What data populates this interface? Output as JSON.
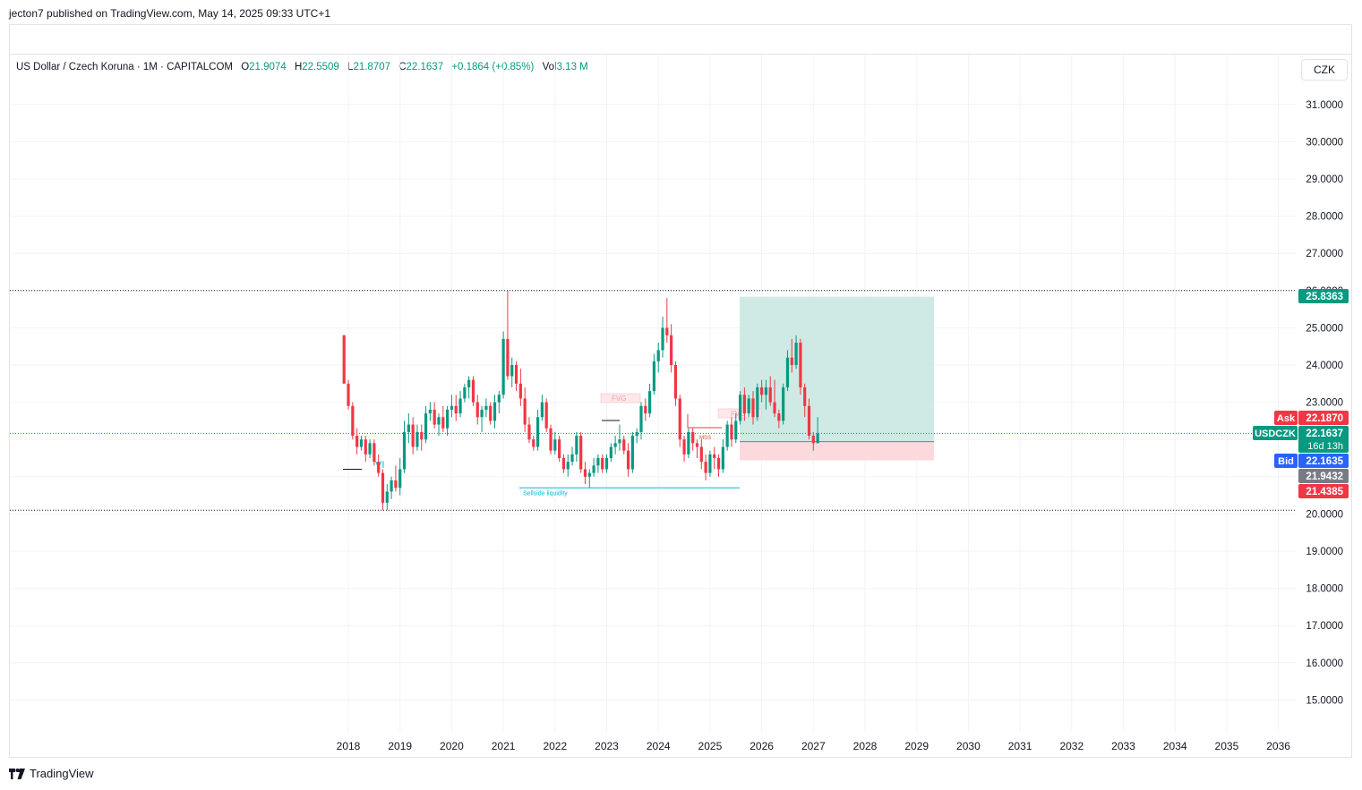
{
  "publish_line": "jecton7 published on TradingView.com, May 14, 2025 09:33 UTC+1",
  "header": {
    "symbol_text": "US Dollar / Czech Koruna · 1M · CAPITALCOM",
    "o_label": "O",
    "o_value": "21.9074",
    "h_label": "H",
    "h_value": "22.5509",
    "l_label": "L",
    "l_value": "21.8707",
    "c_label": "C",
    "c_value": "22.1637",
    "change": "+0.1864 (+0.85%)",
    "vol_label": "Vol",
    "vol_value": "3.13 M"
  },
  "currency_button": "CZK",
  "footer_brand": "TradingView",
  "colors": {
    "up": "#089981",
    "down": "#f23645",
    "grid": "#f0f3fa",
    "teal": "#00bcd4",
    "target_zone": "#cfeae4",
    "stop_zone": "#fbd9dd"
  },
  "chart_data": {
    "type": "candlestick",
    "timeframe": "1M",
    "ylim": [
      14.0,
      32.0
    ],
    "y_ticks": [
      "31.0000",
      "30.0000",
      "29.0000",
      "28.0000",
      "27.0000",
      "26.0000",
      "25.0000",
      "24.0000",
      "23.0000",
      "22.0000",
      "21.0000",
      "20.0000",
      "19.0000",
      "18.0000",
      "17.0000",
      "16.0000",
      "15.0000"
    ],
    "x_ticks": [
      "2018",
      "2019",
      "2020",
      "2021",
      "2022",
      "2023",
      "2024",
      "2025",
      "2026",
      "2027",
      "2028",
      "2029",
      "2030",
      "2031",
      "2032",
      "2033",
      "2034",
      "2035",
      "2036"
    ],
    "ohlc_monthly": [
      [
        24.8,
        24.8,
        23.5,
        23.5
      ],
      [
        23.5,
        23.6,
        22.8,
        22.9
      ],
      [
        22.9,
        23.0,
        22.0,
        22.1
      ],
      [
        22.1,
        22.3,
        21.6,
        21.8
      ],
      [
        21.8,
        22.1,
        21.7,
        22.0
      ],
      [
        22.0,
        22.1,
        21.4,
        21.6
      ],
      [
        21.6,
        22.0,
        21.5,
        21.9
      ],
      [
        21.9,
        22.0,
        21.3,
        21.4
      ],
      [
        21.4,
        21.6,
        21.0,
        21.1
      ],
      [
        21.1,
        21.2,
        20.1,
        20.3
      ],
      [
        20.3,
        20.8,
        20.1,
        20.6
      ],
      [
        20.6,
        21.0,
        20.4,
        20.9
      ],
      [
        20.9,
        21.3,
        20.6,
        20.7
      ],
      [
        20.7,
        21.5,
        20.5,
        21.2
      ],
      [
        21.2,
        22.5,
        21.1,
        22.2
      ],
      [
        22.2,
        22.7,
        21.9,
        22.4
      ],
      [
        22.4,
        22.6,
        21.6,
        21.8
      ],
      [
        21.8,
        22.4,
        21.7,
        22.2
      ],
      [
        22.2,
        22.4,
        21.7,
        22.0
      ],
      [
        22.0,
        22.9,
        21.9,
        22.7
      ],
      [
        22.7,
        23.0,
        22.5,
        22.8
      ],
      [
        22.8,
        23.0,
        22.3,
        22.4
      ],
      [
        22.4,
        22.7,
        22.1,
        22.6
      ],
      [
        22.6,
        22.9,
        22.2,
        22.3
      ],
      [
        22.3,
        22.9,
        22.1,
        22.8
      ],
      [
        22.8,
        23.2,
        22.6,
        22.9
      ],
      [
        22.9,
        23.2,
        22.5,
        22.7
      ],
      [
        22.7,
        23.3,
        22.6,
        23.1
      ],
      [
        23.1,
        23.5,
        23.0,
        23.4
      ],
      [
        23.4,
        23.7,
        23.1,
        23.6
      ],
      [
        23.6,
        23.7,
        22.9,
        23.0
      ],
      [
        23.0,
        23.2,
        22.4,
        22.6
      ],
      [
        22.6,
        22.9,
        22.2,
        22.8
      ],
      [
        22.8,
        23.1,
        22.6,
        22.9
      ],
      [
        22.9,
        23.0,
        22.4,
        22.5
      ],
      [
        22.5,
        23.2,
        22.3,
        23.0
      ],
      [
        23.0,
        23.3,
        22.7,
        23.2
      ],
      [
        23.2,
        24.9,
        23.1,
        24.7
      ],
      [
        24.7,
        26.0,
        23.6,
        23.7
      ],
      [
        23.7,
        24.2,
        23.4,
        24.0
      ],
      [
        24.0,
        24.1,
        23.3,
        23.5
      ],
      [
        23.5,
        23.9,
        22.9,
        23.1
      ],
      [
        23.1,
        23.4,
        22.2,
        22.4
      ],
      [
        22.4,
        22.6,
        21.9,
        22.0
      ],
      [
        22.0,
        22.1,
        21.7,
        21.8
      ],
      [
        21.8,
        22.8,
        21.7,
        22.6
      ],
      [
        22.6,
        23.2,
        22.5,
        23.0
      ],
      [
        23.0,
        23.1,
        22.2,
        22.3
      ],
      [
        22.3,
        22.4,
        21.6,
        21.7
      ],
      [
        21.7,
        22.2,
        21.6,
        22.0
      ],
      [
        22.0,
        22.1,
        21.4,
        21.5
      ],
      [
        21.5,
        21.6,
        21.1,
        21.2
      ],
      [
        21.2,
        21.6,
        21.0,
        21.4
      ],
      [
        21.4,
        21.8,
        21.3,
        21.6
      ],
      [
        21.6,
        22.2,
        21.4,
        22.1
      ],
      [
        22.1,
        22.2,
        21.1,
        21.2
      ],
      [
        21.2,
        21.4,
        20.8,
        21.0
      ],
      [
        21.0,
        21.2,
        20.7,
        21.1
      ],
      [
        21.1,
        21.5,
        21.0,
        21.3
      ],
      [
        21.3,
        21.6,
        21.1,
        21.5
      ],
      [
        21.5,
        21.6,
        21.1,
        21.2
      ],
      [
        21.2,
        21.6,
        21.1,
        21.5
      ],
      [
        21.5,
        21.9,
        21.4,
        21.8
      ],
      [
        21.8,
        22.1,
        21.6,
        21.9
      ],
      [
        21.9,
        22.4,
        21.7,
        22.0
      ],
      [
        22.0,
        22.1,
        21.6,
        21.7
      ],
      [
        21.7,
        21.9,
        21.0,
        21.2
      ],
      [
        21.2,
        22.2,
        21.1,
        22.1
      ],
      [
        22.1,
        22.3,
        21.9,
        22.2
      ],
      [
        22.2,
        23.0,
        22.0,
        22.9
      ],
      [
        22.9,
        23.1,
        22.5,
        22.7
      ],
      [
        22.7,
        23.5,
        22.6,
        23.3
      ],
      [
        23.3,
        24.3,
        23.2,
        24.1
      ],
      [
        24.1,
        24.6,
        23.8,
        24.4
      ],
      [
        24.4,
        25.3,
        24.2,
        25.0
      ],
      [
        25.0,
        25.8,
        24.6,
        24.8
      ],
      [
        24.8,
        25.1,
        23.8,
        24.0
      ],
      [
        24.0,
        24.1,
        22.9,
        23.1
      ],
      [
        23.1,
        23.2,
        21.8,
        22.0
      ],
      [
        22.0,
        22.1,
        21.4,
        21.6
      ],
      [
        21.6,
        22.3,
        21.5,
        22.2
      ],
      [
        22.2,
        22.3,
        21.7,
        21.9
      ],
      [
        21.9,
        22.0,
        21.5,
        21.8
      ],
      [
        21.8,
        22.0,
        21.2,
        21.4
      ],
      [
        21.4,
        21.6,
        20.9,
        21.1
      ],
      [
        21.1,
        21.7,
        21.0,
        21.6
      ],
      [
        21.6,
        21.8,
        21.2,
        21.5
      ],
      [
        21.5,
        21.6,
        21.0,
        21.2
      ],
      [
        21.2,
        22.0,
        21.1,
        21.8
      ],
      [
        21.8,
        22.5,
        21.7,
        22.4
      ],
      [
        22.4,
        22.6,
        21.8,
        22.0
      ],
      [
        22.0,
        22.7,
        21.9,
        22.5
      ],
      [
        22.5,
        23.3,
        22.4,
        23.2
      ],
      [
        23.2,
        23.4,
        22.5,
        22.7
      ],
      [
        22.7,
        23.2,
        22.6,
        23.1
      ],
      [
        23.1,
        23.3,
        22.4,
        22.6
      ],
      [
        22.6,
        23.5,
        22.5,
        23.4
      ],
      [
        23.4,
        23.6,
        23.0,
        23.2
      ],
      [
        23.2,
        23.6,
        22.8,
        23.4
      ],
      [
        23.4,
        23.7,
        22.9,
        23.0
      ],
      [
        23.0,
        23.6,
        22.6,
        22.7
      ],
      [
        22.7,
        22.8,
        22.3,
        22.5
      ],
      [
        22.5,
        23.5,
        22.4,
        23.4
      ],
      [
        23.4,
        24.4,
        23.3,
        24.2
      ],
      [
        24.2,
        24.7,
        23.8,
        24.0
      ],
      [
        24.0,
        24.8,
        23.9,
        24.6
      ],
      [
        24.6,
        24.7,
        23.2,
        23.4
      ],
      [
        23.4,
        23.5,
        22.6,
        22.9
      ],
      [
        22.9,
        23.1,
        22.0,
        22.1
      ],
      [
        22.1,
        22.2,
        21.7,
        21.9
      ],
      [
        21.9,
        22.6,
        21.9,
        22.16
      ]
    ],
    "price_lines": [
      {
        "label": "Ask",
        "value": "22.1870",
        "bg": "#f23645"
      },
      {
        "label": "USDCZK",
        "value": "22.1637",
        "extra": "16d 13h",
        "bg": "#089981"
      },
      {
        "label": "Bid",
        "value": "22.1635",
        "bg": "#2962ff"
      }
    ],
    "axis_badges": [
      {
        "value": "25.8363",
        "bg": "#089981"
      },
      {
        "value": "21.9432",
        "bg": "#787b86"
      },
      {
        "value": "21.4385",
        "bg": "#f23645"
      }
    ],
    "annotations": {
      "sellside_label": "Sellside liquidity",
      "fvg_label": "FVG",
      "mss_label": "MSS",
      "vi_label": "VI"
    }
  }
}
